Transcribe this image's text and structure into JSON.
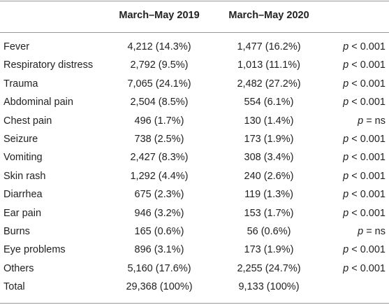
{
  "table": {
    "headers": [
      "March–May 2019",
      "March–May 2020"
    ],
    "rows": [
      [
        "Fever",
        "4,212 (14.3%)",
        "1,477 (16.2%)",
        {
          "symbol": "p",
          "relation": "< 0.001"
        }
      ],
      [
        "Respiratory distress",
        "2,792 (9.5%)",
        "1,013 (11.1%)",
        {
          "symbol": "p",
          "relation": "< 0.001"
        }
      ],
      [
        "Trauma",
        "7,065 (24.1%)",
        "2,482 (27.2%)",
        {
          "symbol": "p",
          "relation": "< 0.001"
        }
      ],
      [
        "Abdominal pain",
        "2,504 (8.5%)",
        "554 (6.1%)",
        {
          "symbol": "p",
          "relation": "< 0.001"
        }
      ],
      [
        "Chest pain",
        "496 (1.7%)",
        "130 (1.4%)",
        {
          "symbol": "p",
          "relation": "= ns"
        }
      ],
      [
        "Seizure",
        "738 (2.5%)",
        "173 (1.9%)",
        {
          "symbol": "p",
          "relation": "< 0.001"
        }
      ],
      [
        "Vomiting",
        "2,427 (8.3%)",
        "308 (3.4%)",
        {
          "symbol": "p",
          "relation": "< 0.001"
        }
      ],
      [
        "Skin rash",
        "1,292 (4.4%)",
        "240 (2.6%)",
        {
          "symbol": "p",
          "relation": "< 0.001"
        }
      ],
      [
        "Diarrhea",
        "675 (2.3%)",
        "119 (1.3%)",
        {
          "symbol": "p",
          "relation": "< 0.001"
        }
      ],
      [
        "Ear pain",
        "946 (3.2%)",
        "153 (1.7%)",
        {
          "symbol": "p",
          "relation": "< 0.001"
        }
      ],
      [
        "Burns",
        "165 (0.6%)",
        "56 (0.6%)",
        {
          "symbol": "p",
          "relation": "= ns"
        }
      ],
      [
        "Eye problems",
        "896 (3.1%)",
        "173 (1.9%)",
        {
          "symbol": "p",
          "relation": "< 0.001"
        }
      ],
      [
        "Others",
        "5,160 (17.6%)",
        "2,255 (24.7%)",
        {
          "symbol": "p",
          "relation": "< 0.001"
        }
      ],
      [
        "Total",
        "29,368 (100%)",
        "9,133 (100%)"
      ]
    ]
  }
}
